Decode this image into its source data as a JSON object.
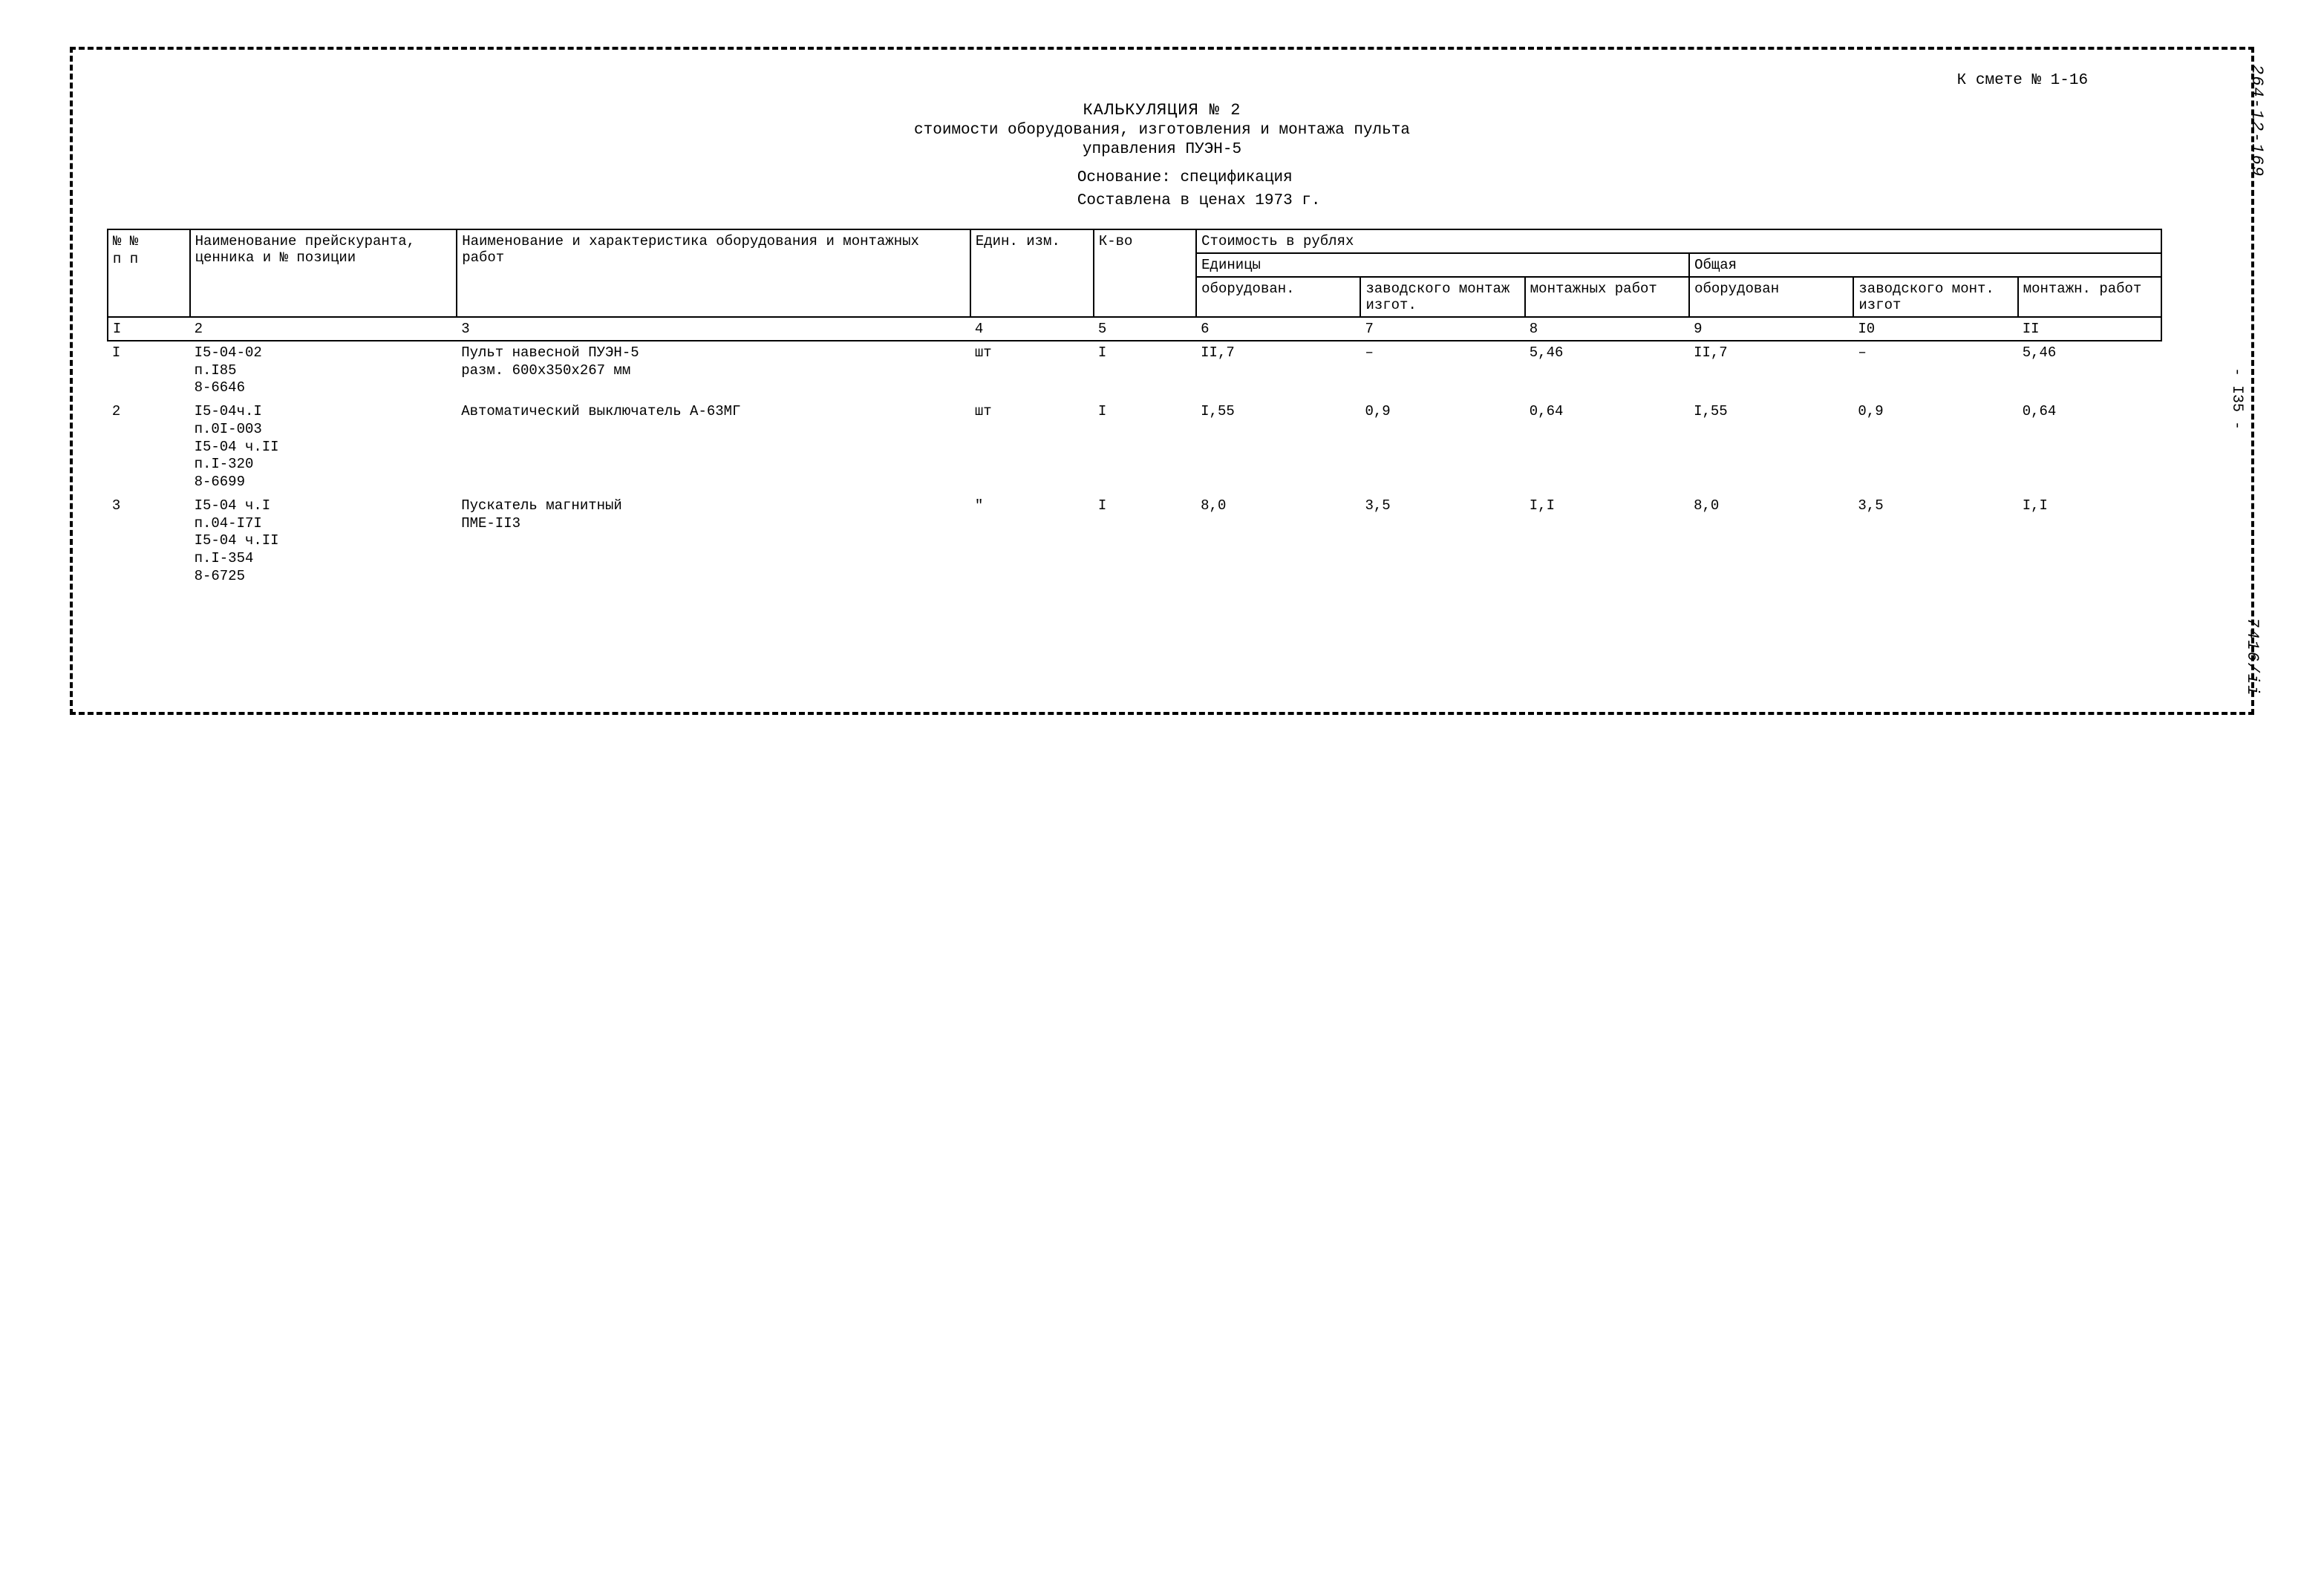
{
  "margin": {
    "top_right": "264-12-169",
    "right": "- І35 -",
    "bottom_right": "7416/іі"
  },
  "header": {
    "topref": "К смете № 1-16",
    "title": "КАЛЬКУЛЯЦИЯ № 2",
    "subtitle_line1": "стоимости оборудования, изготовления и монтажа пульта",
    "subtitle_line2": "управления ПУЭН-5",
    "basis": "Основание: спецификация",
    "prices": "Составлена в ценах 1973 г."
  },
  "table": {
    "head": {
      "c1": "№ №\nп п",
      "c2": "Наименование прейскуранта, ценника и № позиции",
      "c3": "Наименование и характеристика оборудования и монтажных работ",
      "c4": "Един. изм.",
      "c5": "К-во",
      "cost_group": "Стоимость в рублях",
      "unit_group": "Единицы",
      "total_group": "Общая",
      "c6": "оборудован.",
      "c7": "заводского монтаж изгот.",
      "c8": "монтажных работ",
      "c9": "оборудован",
      "c10": "заводского монт. изгот",
      "c11": "монтажн. работ"
    },
    "colnums": {
      "c1": "І",
      "c2": "2",
      "c3": "3",
      "c4": "4",
      "c5": "5",
      "c6": "6",
      "c7": "7",
      "c8": "8",
      "c9": "9",
      "c10": "І0",
      "c11": "ІІ"
    },
    "rows": [
      {
        "n": "І",
        "ref": "І5-04-02\nп.І85\n8-6646",
        "name": "Пульт навесной ПУЭН-5\nразм. 600х350х267 мм",
        "unit": "шт",
        "qty": "І",
        "c6": "ІІ,7",
        "c7": "–",
        "c8": "5,46",
        "c9": "ІІ,7",
        "c10": "–",
        "c11": "5,46"
      },
      {
        "n": "2",
        "ref": "І5-04ч.І\nп.0І-003\nІ5-04 ч.ІІ\nп.І-320\n8-6699",
        "name": "Автоматический выключатель А-63МГ",
        "unit": "шт",
        "qty": "І",
        "c6": "І,55",
        "c7": "0,9",
        "c8": "0,64",
        "c9": "І,55",
        "c10": "0,9",
        "c11": "0,64"
      },
      {
        "n": "3",
        "ref": "І5-04 ч.І\nп.04-І7І\nІ5-04 ч.ІІ\nп.І-354\n8-6725",
        "name": "Пускатель магнитный\nПМЕ-ІІ3",
        "unit": "\"",
        "qty": "І",
        "c6": "8,0",
        "c7": "3,5",
        "c8": "І,І",
        "c9": "8,0",
        "c10": "3,5",
        "c11": "І,І"
      }
    ]
  }
}
